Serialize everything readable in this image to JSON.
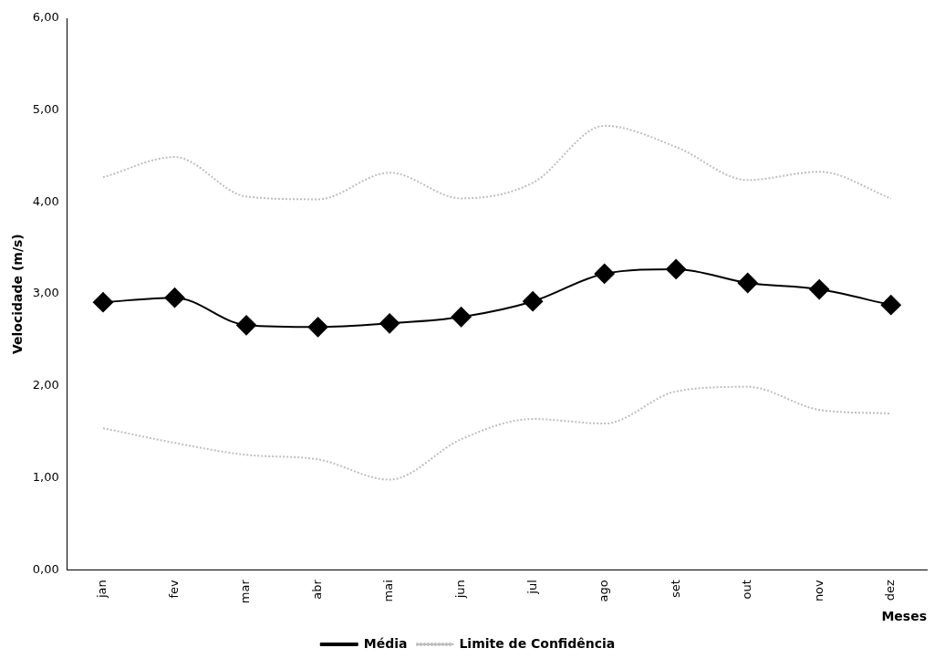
{
  "chart_data": {
    "type": "line",
    "xlabel": "Meses",
    "ylabel": "Velocidade (m/s)",
    "categories": [
      "jan",
      "fev",
      "mar",
      "abr",
      "mai",
      "jun",
      "jul",
      "ago",
      "set",
      "out",
      "nov",
      "dez"
    ],
    "series": [
      {
        "name": "Média",
        "color": "#000000",
        "marker": "diamond",
        "line_style": "solid",
        "values": [
          2.91,
          2.96,
          2.66,
          2.64,
          2.68,
          2.75,
          2.92,
          3.22,
          3.27,
          3.12,
          3.05,
          2.88
        ]
      },
      {
        "name": "Limite de Confidência",
        "color": "#bfbfbf",
        "marker": "none",
        "line_style": "dotted",
        "values": [
          4.27,
          4.49,
          4.06,
          4.03,
          4.32,
          4.04,
          4.21,
          4.83,
          4.6,
          4.24,
          4.33,
          4.04
        ]
      },
      {
        "color": "#bfbfbf",
        "marker": "none",
        "line_style": "dotted",
        "values": [
          1.54,
          1.38,
          1.25,
          1.2,
          0.98,
          1.42,
          1.64,
          1.59,
          1.94,
          1.99,
          1.74,
          1.7
        ]
      }
    ],
    "ylim": [
      0,
      6
    ],
    "yticks": [
      {
        "value": 0,
        "label": "0,00"
      },
      {
        "value": 1,
        "label": "1,00"
      },
      {
        "value": 2,
        "label": "2,00"
      },
      {
        "value": 3,
        "label": "3,00"
      },
      {
        "value": 4,
        "label": "4,00"
      },
      {
        "value": 5,
        "label": "5,00"
      },
      {
        "value": 6,
        "label": "6,00"
      }
    ],
    "grid": false,
    "legend": "bottom"
  }
}
